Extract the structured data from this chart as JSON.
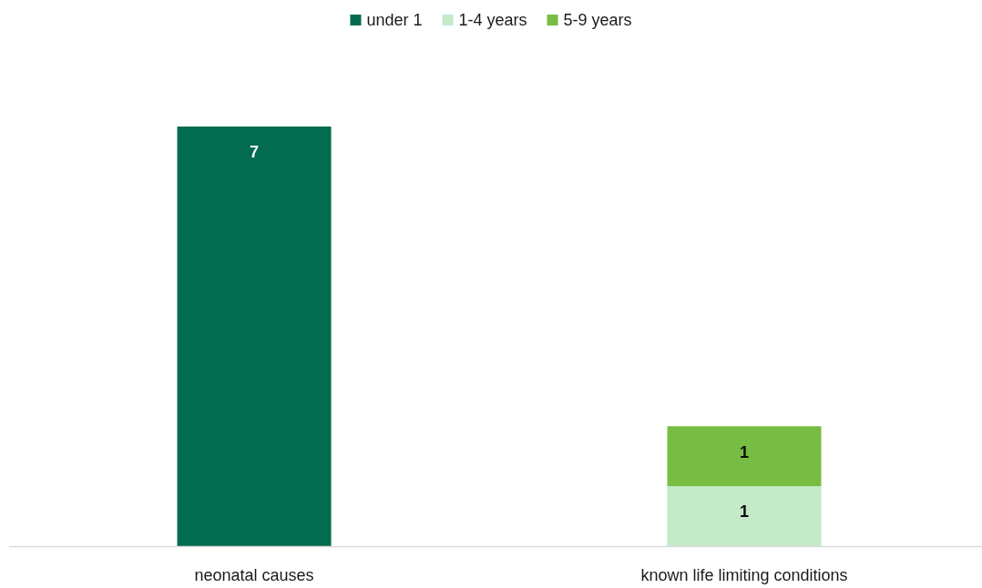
{
  "chart_data": {
    "type": "bar",
    "stacked": true,
    "categories": [
      "neonatal causes",
      "known life limiting conditions"
    ],
    "series": [
      {
        "name": "under 1",
        "color": "#036b50",
        "values": [
          7,
          null
        ]
      },
      {
        "name": "1-4 years",
        "color": "#c4eac8",
        "values": [
          null,
          1
        ]
      },
      {
        "name": "5-9 years",
        "color": "#77bd43",
        "values": [
          null,
          1
        ]
      }
    ],
    "data_labels": true,
    "legend": "top"
  }
}
